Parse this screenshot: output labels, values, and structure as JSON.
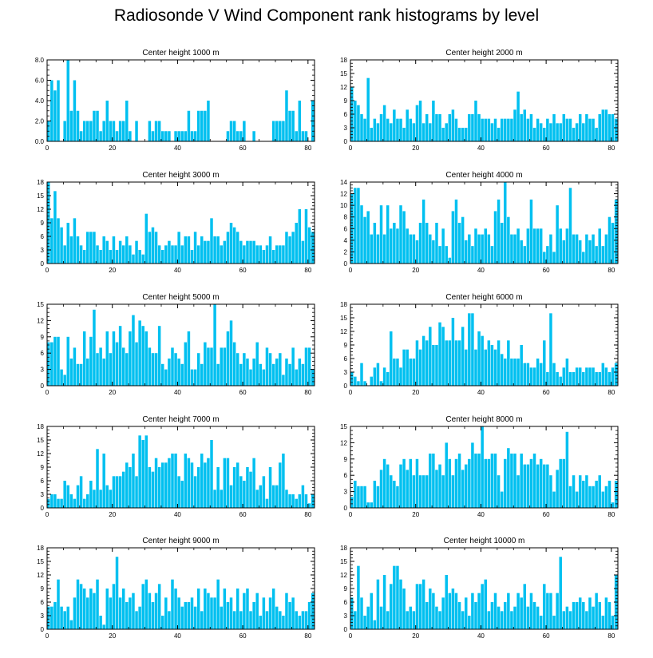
{
  "figure_title": "Radiosonde V Wind Component rank histograms by level",
  "bar_color": "#00c0f0",
  "chart_data": [
    {
      "type": "bar",
      "title": "Center height 1000 m",
      "x_ticks": [
        0,
        20,
        40,
        60,
        80
      ],
      "xlim": [
        0,
        82
      ],
      "ylim": [
        0,
        8
      ],
      "y_ticks": [
        "0.0",
        "2.0",
        "4.0",
        "6.0",
        "8.0"
      ],
      "y_tick_values": [
        0,
        2,
        4,
        6,
        8
      ],
      "values": [
        2,
        6,
        5,
        6,
        0,
        2,
        8,
        3,
        6,
        3,
        1,
        2,
        2,
        2,
        3,
        3,
        1,
        2,
        4,
        2,
        2,
        1,
        2,
        2,
        4,
        1,
        0,
        2,
        0,
        0,
        0,
        2,
        1,
        2,
        2,
        1,
        1,
        1,
        0,
        1,
        1,
        1,
        1,
        3,
        1,
        1,
        3,
        3,
        3,
        4,
        0,
        0,
        0,
        0,
        0,
        1,
        2,
        2,
        1,
        1,
        2,
        0,
        0,
        1,
        0,
        0,
        0,
        0,
        0,
        2,
        2,
        2,
        2,
        5,
        3,
        3,
        1,
        4,
        1,
        1,
        0,
        4
      ]
    },
    {
      "type": "bar",
      "title": "Center height 2000 m",
      "x_ticks": [
        0,
        20,
        40,
        60,
        80
      ],
      "xlim": [
        0,
        82
      ],
      "ylim": [
        0,
        18
      ],
      "y_ticks": [
        "0",
        "3",
        "6",
        "9",
        "12",
        "15",
        "18"
      ],
      "y_tick_values": [
        0,
        3,
        6,
        9,
        12,
        15,
        18
      ],
      "values": [
        12,
        9,
        8,
        6,
        5,
        14,
        3,
        5,
        4,
        6,
        8,
        5,
        4,
        7,
        5,
        5,
        3,
        7,
        5,
        4,
        8,
        9,
        4,
        6,
        4,
        9,
        6,
        6,
        3,
        4,
        6,
        7,
        5,
        3,
        3,
        3,
        6,
        6,
        9,
        6,
        5,
        5,
        5,
        4,
        5,
        3,
        5,
        5,
        5,
        5,
        7,
        11,
        6,
        7,
        5,
        6,
        3,
        5,
        4,
        3,
        5,
        4,
        6,
        4,
        4,
        6,
        5,
        5,
        3,
        4,
        6,
        4,
        6,
        5,
        5,
        3,
        6,
        7,
        7,
        6,
        6,
        5
      ]
    },
    {
      "type": "bar",
      "title": "Center height 3000 m",
      "x_ticks": [
        0,
        20,
        40,
        60,
        80
      ],
      "xlim": [
        0,
        82
      ],
      "ylim": [
        0,
        18
      ],
      "y_ticks": [
        "0",
        "3",
        "6",
        "9",
        "12",
        "15",
        "18"
      ],
      "y_tick_values": [
        0,
        3,
        6,
        9,
        12,
        15,
        18
      ],
      "values": [
        18,
        10,
        16,
        10,
        8,
        4,
        9,
        6,
        10,
        6,
        4,
        3,
        7,
        7,
        7,
        4,
        3,
        6,
        5,
        3,
        6,
        3,
        5,
        4,
        6,
        4,
        2,
        5,
        3,
        2,
        11,
        7,
        8,
        7,
        4,
        3,
        4,
        5,
        4,
        4,
        7,
        4,
        6,
        6,
        3,
        7,
        4,
        6,
        5,
        5,
        10,
        6,
        6,
        4,
        5,
        7,
        9,
        8,
        7,
        5,
        4,
        5,
        5,
        5,
        4,
        4,
        3,
        4,
        6,
        3,
        4,
        4,
        4,
        7,
        6,
        7,
        9,
        12,
        5,
        12,
        8,
        7
      ]
    },
    {
      "type": "bar",
      "title": "Center height 4000 m",
      "x_ticks": [
        0,
        20,
        40,
        60,
        80
      ],
      "xlim": [
        0,
        82
      ],
      "ylim": [
        0,
        14
      ],
      "y_ticks": [
        "0",
        "2",
        "4",
        "6",
        "8",
        "10",
        "12",
        "14"
      ],
      "y_tick_values": [
        0,
        2,
        4,
        6,
        8,
        10,
        12,
        14
      ],
      "values": [
        12,
        13,
        13,
        10,
        8,
        9,
        5,
        7,
        5,
        10,
        5,
        10,
        6,
        7,
        6,
        10,
        9,
        6,
        5,
        5,
        4,
        7,
        11,
        7,
        5,
        4,
        7,
        3,
        6,
        3,
        1,
        9,
        11,
        7,
        8,
        4,
        5,
        3,
        6,
        5,
        5,
        6,
        5,
        3,
        9,
        11,
        7,
        14,
        8,
        5,
        5,
        6,
        4,
        3,
        6,
        11,
        6,
        6,
        6,
        2,
        3,
        5,
        2,
        10,
        6,
        4,
        6,
        13,
        5,
        5,
        4,
        2,
        5,
        4,
        5,
        3,
        6,
        3,
        5,
        8,
        7,
        11
      ]
    },
    {
      "type": "bar",
      "title": "Center height 5000 m",
      "x_ticks": [
        0,
        20,
        40,
        60,
        80
      ],
      "xlim": [
        0,
        82
      ],
      "ylim": [
        0,
        15
      ],
      "y_ticks": [
        "0",
        "3",
        "6",
        "9",
        "12",
        "15"
      ],
      "y_tick_values": [
        0,
        3,
        6,
        9,
        12,
        15
      ],
      "values": [
        8,
        8,
        9,
        9,
        3,
        2,
        9,
        5,
        7,
        4,
        4,
        10,
        5,
        9,
        14,
        6,
        7,
        5,
        10,
        6,
        10,
        8,
        11,
        7,
        6,
        10,
        13,
        8,
        12,
        11,
        10,
        7,
        6,
        6,
        11,
        4,
        3,
        5,
        7,
        6,
        5,
        4,
        8,
        10,
        3,
        3,
        6,
        4,
        8,
        7,
        7,
        15,
        4,
        7,
        7,
        10,
        12,
        8,
        6,
        4,
        6,
        5,
        3,
        5,
        8,
        4,
        3,
        7,
        6,
        4,
        5,
        6,
        2,
        5,
        4,
        7,
        3,
        5,
        4,
        7,
        7,
        3
      ]
    },
    {
      "type": "bar",
      "title": "Center height 6000 m",
      "x_ticks": [
        0,
        20,
        40,
        60,
        80
      ],
      "xlim": [
        0,
        82
      ],
      "ylim": [
        0,
        18
      ],
      "y_ticks": [
        "0",
        "3",
        "6",
        "9",
        "12",
        "15",
        "18"
      ],
      "y_tick_values": [
        0,
        3,
        6,
        9,
        12,
        15,
        18
      ],
      "values": [
        3,
        2,
        1,
        5,
        1,
        0,
        2,
        4,
        5,
        1,
        4,
        3,
        12,
        6,
        6,
        4,
        8,
        8,
        6,
        6,
        10,
        8,
        11,
        10,
        13,
        9,
        9,
        14,
        13,
        10,
        10,
        15,
        10,
        10,
        13,
        8,
        16,
        16,
        8,
        12,
        11,
        8,
        10,
        9,
        8,
        10,
        7,
        6,
        10,
        6,
        6,
        6,
        9,
        5,
        5,
        4,
        4,
        6,
        5,
        10,
        3,
        16,
        5,
        3,
        2,
        4,
        6,
        3,
        3,
        4,
        4,
        3,
        4,
        4,
        4,
        3,
        3,
        5,
        4,
        3,
        4,
        5
      ]
    },
    {
      "type": "bar",
      "title": "Center height 7000 m",
      "x_ticks": [
        0,
        20,
        40,
        60,
        80
      ],
      "xlim": [
        0,
        82
      ],
      "ylim": [
        0,
        18
      ],
      "y_ticks": [
        "0",
        "3",
        "6",
        "9",
        "12",
        "15",
        "18"
      ],
      "y_tick_values": [
        0,
        3,
        6,
        9,
        12,
        15,
        18
      ],
      "values": [
        2,
        3,
        3,
        2,
        2,
        6,
        5,
        3,
        2,
        5,
        7,
        2,
        3,
        6,
        4,
        13,
        4,
        12,
        5,
        4,
        7,
        7,
        7,
        8,
        10,
        9,
        12,
        7,
        16,
        15,
        16,
        9,
        8,
        11,
        9,
        10,
        10,
        11,
        12,
        12,
        7,
        6,
        12,
        11,
        10,
        7,
        9,
        12,
        10,
        11,
        15,
        4,
        9,
        4,
        11,
        11,
        5,
        9,
        10,
        7,
        6,
        9,
        8,
        11,
        4,
        5,
        7,
        2,
        9,
        5,
        5,
        10,
        12,
        4,
        3,
        3,
        2,
        3,
        5,
        3,
        1,
        3
      ]
    },
    {
      "type": "bar",
      "title": "Center height 8000 m",
      "x_ticks": [
        0,
        20,
        40,
        60,
        80
      ],
      "xlim": [
        0,
        82
      ],
      "ylim": [
        0,
        15
      ],
      "y_ticks": [
        "0",
        "3",
        "6",
        "9",
        "12",
        "15"
      ],
      "y_tick_values": [
        0,
        3,
        6,
        9,
        12,
        15
      ],
      "values": [
        2,
        5,
        4,
        4,
        4,
        1,
        1,
        5,
        4,
        7,
        9,
        8,
        6,
        5,
        4,
        8,
        9,
        7,
        9,
        6,
        9,
        6,
        6,
        6,
        10,
        10,
        7,
        8,
        6,
        12,
        9,
        6,
        9,
        10,
        7,
        8,
        9,
        12,
        10,
        10,
        15,
        9,
        9,
        10,
        10,
        6,
        3,
        9,
        11,
        10,
        10,
        6,
        10,
        8,
        8,
        9,
        10,
        8,
        9,
        8,
        8,
        6,
        3,
        7,
        9,
        9,
        14,
        4,
        6,
        3,
        6,
        5,
        6,
        4,
        4,
        5,
        6,
        3,
        4,
        5,
        1,
        5
      ]
    },
    {
      "type": "bar",
      "title": "Center height 9000 m",
      "x_ticks": [
        0,
        20,
        40,
        60,
        80
      ],
      "xlim": [
        0,
        82
      ],
      "ylim": [
        0,
        18
      ],
      "y_ticks": [
        "0",
        "3",
        "6",
        "9",
        "12",
        "15",
        "18"
      ],
      "y_tick_values": [
        0,
        3,
        6,
        9,
        12,
        15,
        18
      ],
      "values": [
        5,
        5,
        6,
        11,
        5,
        4,
        5,
        2,
        7,
        11,
        10,
        9,
        7,
        9,
        8,
        11,
        3,
        1,
        9,
        7,
        10,
        16,
        7,
        9,
        6,
        7,
        8,
        4,
        5,
        10,
        11,
        8,
        6,
        8,
        10,
        3,
        7,
        4,
        11,
        9,
        7,
        5,
        6,
        6,
        7,
        5,
        9,
        4,
        9,
        8,
        7,
        7,
        11,
        5,
        9,
        6,
        7,
        4,
        9,
        4,
        8,
        9,
        4,
        6,
        8,
        3,
        7,
        4,
        7,
        9,
        5,
        4,
        3,
        8,
        6,
        7,
        4,
        3,
        4,
        4,
        6,
        8
      ]
    },
    {
      "type": "bar",
      "title": "Center height 10000 m",
      "x_ticks": [
        0,
        20,
        40,
        60,
        80
      ],
      "xlim": [
        0,
        82
      ],
      "ylim": [
        0,
        18
      ],
      "y_ticks": [
        "0",
        "3",
        "6",
        "9",
        "12",
        "15",
        "18"
      ],
      "y_tick_values": [
        0,
        3,
        6,
        9,
        12,
        15,
        18
      ],
      "values": [
        7,
        4,
        14,
        7,
        3,
        5,
        8,
        2,
        11,
        5,
        12,
        4,
        10,
        14,
        14,
        11,
        9,
        4,
        5,
        4,
        10,
        10,
        11,
        6,
        9,
        8,
        5,
        4,
        7,
        12,
        8,
        9,
        8,
        6,
        4,
        7,
        3,
        8,
        6,
        8,
        10,
        11,
        4,
        6,
        8,
        5,
        4,
        6,
        8,
        4,
        5,
        8,
        7,
        10,
        5,
        8,
        6,
        5,
        3,
        10,
        8,
        8,
        3,
        8,
        16,
        4,
        5,
        4,
        6,
        6,
        7,
        6,
        4,
        7,
        5,
        8,
        6,
        3,
        7,
        6,
        3,
        12
      ]
    }
  ]
}
